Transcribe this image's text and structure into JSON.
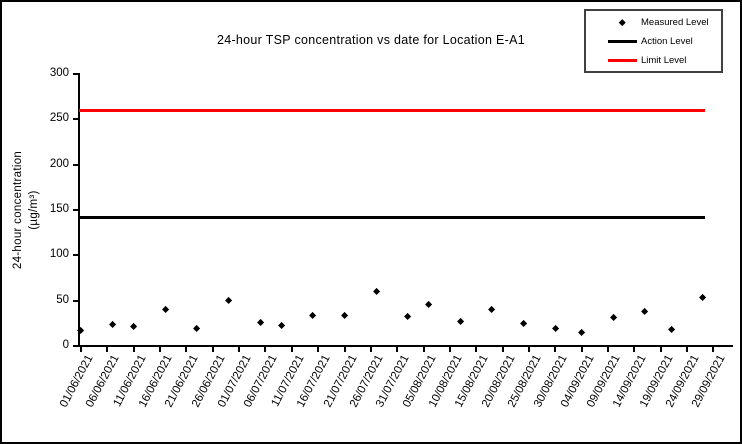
{
  "chart_data": {
    "type": "scatter",
    "title": "24-hour TSP concentration vs date for Location E-A1",
    "ylabel_line1": "24-hour concentration",
    "ylabel_line2": "(µg/m³)",
    "ylim": [
      0,
      300
    ],
    "y_ticks": [
      0,
      50,
      100,
      150,
      200,
      250,
      300
    ],
    "x_tick_labels": [
      "01/06/2021",
      "06/06/2021",
      "11/06/2021",
      "16/06/2021",
      "21/06/2021",
      "26/06/2021",
      "01/07/2021",
      "06/07/2021",
      "11/07/2021",
      "16/07/2021",
      "21/07/2021",
      "26/07/2021",
      "31/07/2021",
      "05/08/2021",
      "10/08/2021",
      "15/08/2021",
      "20/08/2021",
      "25/08/2021",
      "30/08/2021",
      "04/09/2021",
      "09/09/2021",
      "14/09/2021",
      "19/09/2021",
      "24/09/2021",
      "29/09/2021"
    ],
    "grid": false,
    "legend_position": "top-right",
    "series": [
      {
        "name": "Measured Level",
        "type": "scatter",
        "marker": "diamond",
        "color": "#000000",
        "points": [
          [
            "01/06/2021",
            17
          ],
          [
            "07/06/2021",
            24
          ],
          [
            "11/06/2021",
            21
          ],
          [
            "17/06/2021",
            40
          ],
          [
            "23/06/2021",
            19
          ],
          [
            "29/06/2021",
            50
          ],
          [
            "05/07/2021",
            26
          ],
          [
            "09/07/2021",
            23
          ],
          [
            "15/07/2021",
            34
          ],
          [
            "21/07/2021",
            33
          ],
          [
            "27/07/2021",
            60
          ],
          [
            "02/08/2021",
            32
          ],
          [
            "06/08/2021",
            46
          ],
          [
            "12/08/2021",
            27
          ],
          [
            "18/08/2021",
            40
          ],
          [
            "24/08/2021",
            25
          ],
          [
            "30/08/2021",
            19
          ],
          [
            "04/09/2021",
            15
          ],
          [
            "10/09/2021",
            31
          ],
          [
            "16/09/2021",
            38
          ],
          [
            "21/09/2021",
            18
          ],
          [
            "27/09/2021",
            53
          ]
        ]
      },
      {
        "name": "Action Level",
        "type": "hline",
        "color": "#000000",
        "value": 142
      },
      {
        "name": "Limit Level",
        "type": "hline",
        "color": "#ff0000",
        "value": 260
      }
    ]
  }
}
